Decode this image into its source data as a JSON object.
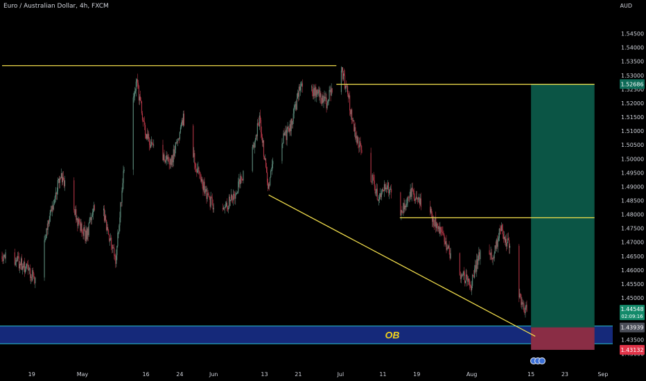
{
  "chart_title": "Euro / Australian Dollar, 4h, FXCM",
  "currency": "AUD",
  "colors": {
    "background": "#000000",
    "candle_up": "#5f8f7f",
    "candle_down": "#b23545",
    "level_line": "#f4e04d",
    "ob_zone": "#15297a",
    "ob_border": "#2bc3d6",
    "profit_zone": "#0b5545",
    "loss_zone": "#8a2d45",
    "axis_text": "#d1d4dc"
  },
  "chart_data": {
    "type": "candlestick",
    "ylim": [
      1.4256,
      1.5571
    ],
    "y_ticks": [
      "1.54500",
      "1.54000",
      "1.53500",
      "1.53000",
      "1.52500",
      "1.52000",
      "1.51500",
      "1.51000",
      "1.50500",
      "1.50000",
      "1.49500",
      "1.49000",
      "1.48500",
      "1.48000",
      "1.47500",
      "1.47000",
      "1.46500",
      "1.46000",
      "1.45500",
      "1.45000",
      "1.43500",
      "1.43000"
    ],
    "x_ticks": [
      "19",
      "May",
      "16",
      "24",
      "Jun",
      "13",
      "21",
      "Jul",
      "11",
      "19",
      "Aug",
      "15",
      "23",
      "Sep"
    ],
    "price_path": [
      {
        "date": "Apr 12",
        "price": 1.465
      },
      {
        "date": "Apr 17",
        "price": 1.462
      },
      {
        "date": "Apr 20",
        "price": 1.457
      },
      {
        "date": "Apr 24",
        "price": 1.482
      },
      {
        "date": "Apr 26",
        "price": 1.495
      },
      {
        "date": "Apr 30",
        "price": 1.478
      },
      {
        "date": "May 2",
        "price": 1.472
      },
      {
        "date": "May 5",
        "price": 1.487
      },
      {
        "date": "May 9",
        "price": 1.463
      },
      {
        "date": "May 12",
        "price": 1.515
      },
      {
        "date": "May 14",
        "price": 1.527
      },
      {
        "date": "May 16",
        "price": 1.51
      },
      {
        "date": "May 18",
        "price": 1.503
      },
      {
        "date": "May 22",
        "price": 1.498
      },
      {
        "date": "May 25",
        "price": 1.515
      },
      {
        "date": "May 28",
        "price": 1.497
      },
      {
        "date": "May 31",
        "price": 1.485
      },
      {
        "date": "Jun 3",
        "price": 1.48
      },
      {
        "date": "Jun 7",
        "price": 1.49
      },
      {
        "date": "Jun 10",
        "price": 1.5
      },
      {
        "date": "Jun 12",
        "price": 1.515
      },
      {
        "date": "Jun 14",
        "price": 1.49
      },
      {
        "date": "Jun 16",
        "price": 1.505
      },
      {
        "date": "Jun 19",
        "price": 1.51
      },
      {
        "date": "Jun 22",
        "price": 1.528
      },
      {
        "date": "Jun 25",
        "price": 1.524
      },
      {
        "date": "Jun 28",
        "price": 1.52
      },
      {
        "date": "Jul 1",
        "price": 1.535
      },
      {
        "date": "Jul 3",
        "price": 1.522
      },
      {
        "date": "Jul 5",
        "price": 1.507
      },
      {
        "date": "Jul 8",
        "price": 1.495
      },
      {
        "date": "Jul 10",
        "price": 1.486
      },
      {
        "date": "Jul 12",
        "price": 1.491
      },
      {
        "date": "Jul 15",
        "price": 1.48
      },
      {
        "date": "Jul 18",
        "price": 1.488
      },
      {
        "date": "Jul 22",
        "price": 1.481
      },
      {
        "date": "Jul 25",
        "price": 1.474
      },
      {
        "date": "Jul 28",
        "price": 1.462
      },
      {
        "date": "Aug 1",
        "price": 1.454
      },
      {
        "date": "Aug 4",
        "price": 1.472
      },
      {
        "date": "Aug 6",
        "price": 1.463
      },
      {
        "date": "Aug 8",
        "price": 1.476
      },
      {
        "date": "Aug 10",
        "price": 1.468
      },
      {
        "date": "Aug 12",
        "price": 1.452
      },
      {
        "date": "Aug 14",
        "price": 1.4454
      }
    ],
    "horizontal_levels": [
      {
        "price": 1.5335,
        "from": "Apr 12",
        "to": "Jun 30"
      },
      {
        "price": 1.5268,
        "from": "Jun 30",
        "to": "Aug 30"
      },
      {
        "price": 1.4788,
        "from": "Jul 15",
        "to": "Aug 30"
      }
    ],
    "trendline": {
      "from": {
        "date": "Jun 14",
        "price": 1.487
      },
      "to": {
        "date": "Aug 16",
        "price": 1.4362
      }
    },
    "ob_zone": {
      "label": "OB",
      "price_top": 1.4399,
      "price_bottom": 1.4335
    },
    "position": {
      "entry": 1.4394,
      "target": 1.52686,
      "stop": 1.43132,
      "start": "Aug 15",
      "end": "Aug 30"
    },
    "price_labels": {
      "target": "1.52686",
      "current": "1.44548",
      "countdown": "02:09:16",
      "ob": "1.43939",
      "stop": "1.43132"
    }
  }
}
